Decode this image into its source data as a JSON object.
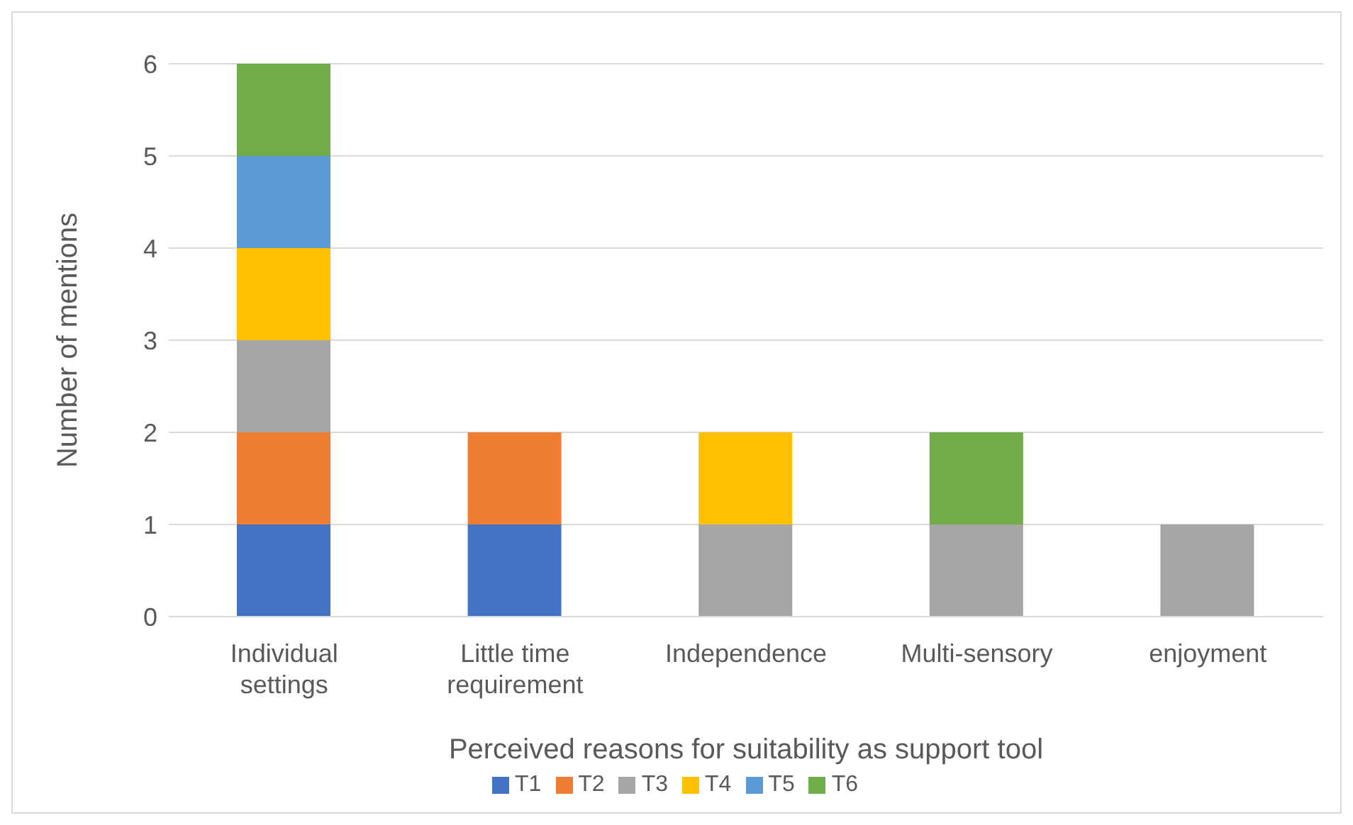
{
  "chart_data": {
    "type": "bar",
    "stacked": true,
    "xlabel": "Perceived reasons for suitability as support tool",
    "ylabel": "Number of mentions",
    "categories": [
      "Individual settings",
      "Little time requirement",
      "Independence",
      "Multi-sensory",
      "enjoyment"
    ],
    "series": [
      {
        "name": "T1",
        "color": "#4472c4",
        "values": [
          1,
          1,
          null,
          null,
          null
        ]
      },
      {
        "name": "T2",
        "color": "#ed7d31",
        "values": [
          1,
          1,
          null,
          null,
          null
        ]
      },
      {
        "name": "T3",
        "color": "#a5a5a5",
        "values": [
          1,
          null,
          1,
          1,
          1
        ]
      },
      {
        "name": "T4",
        "color": "#ffc000",
        "values": [
          1,
          null,
          1,
          null,
          null
        ]
      },
      {
        "name": "T5",
        "color": "#5b9bd5",
        "values": [
          1,
          null,
          null,
          null,
          null
        ]
      },
      {
        "name": "T6",
        "color": "#70ad47",
        "values": [
          1,
          null,
          null,
          1,
          null
        ]
      }
    ],
    "ylim": [
      0,
      6
    ],
    "yticks": [
      0,
      1,
      2,
      3,
      4,
      5,
      6
    ],
    "grid": "y",
    "legend": "bottom"
  }
}
